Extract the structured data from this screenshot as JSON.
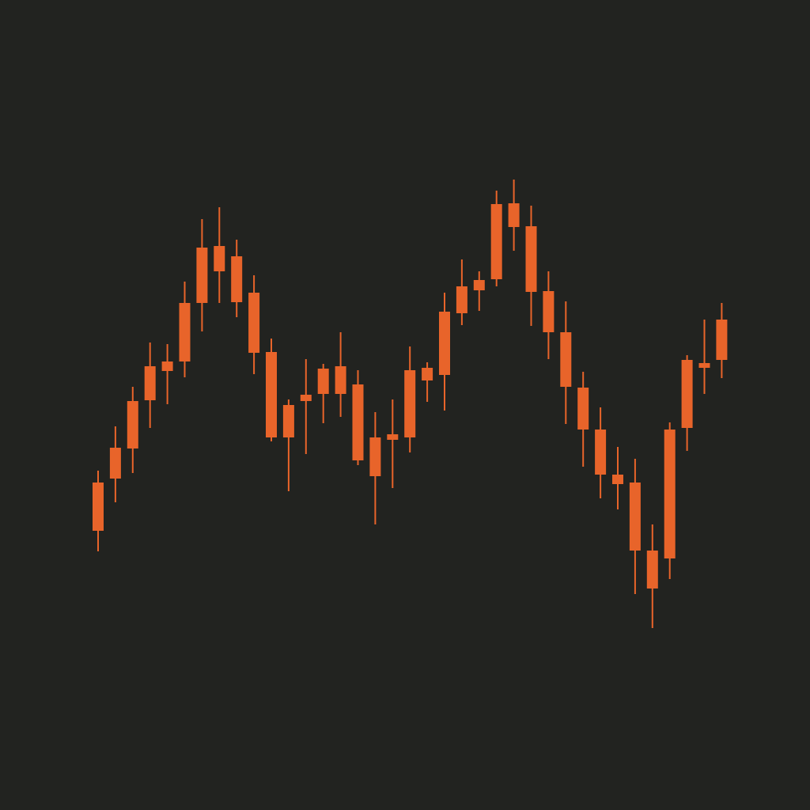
{
  "colors": {
    "background": "#222320",
    "candle": "#E8642A"
  },
  "chart_data": {
    "type": "candlestick",
    "title": "",
    "xlabel": "",
    "ylabel": "",
    "axes_visible": false,
    "grid": false,
    "legend": "none",
    "ylim": [
      0,
      1000
    ],
    "candles": [
      {
        "index": 1,
        "open": 329,
        "close": 390,
        "high": 405,
        "low": 303
      },
      {
        "index": 2,
        "open": 395,
        "close": 434,
        "high": 461,
        "low": 365
      },
      {
        "index": 3,
        "open": 433,
        "close": 493,
        "high": 511,
        "low": 402
      },
      {
        "index": 4,
        "open": 494,
        "close": 537,
        "high": 567,
        "low": 459
      },
      {
        "index": 5,
        "open": 531,
        "close": 543,
        "high": 565,
        "low": 489
      },
      {
        "index": 6,
        "open": 543,
        "close": 617,
        "high": 644,
        "low": 523
      },
      {
        "index": 7,
        "open": 617,
        "close": 687,
        "high": 723,
        "low": 581
      },
      {
        "index": 8,
        "open": 689,
        "close": 657,
        "high": 738,
        "low": 617
      },
      {
        "index": 9,
        "open": 676,
        "close": 618,
        "high": 697,
        "low": 599
      },
      {
        "index": 10,
        "open": 630,
        "close": 554,
        "high": 652,
        "low": 527
      },
      {
        "index": 11,
        "open": 555,
        "close": 447,
        "high": 572,
        "low": 442
      },
      {
        "index": 12,
        "open": 488,
        "close": 447,
        "high": 495,
        "low": 379
      },
      {
        "index": 13,
        "open": 493,
        "close": 501,
        "high": 546,
        "low": 426
      },
      {
        "index": 14,
        "open": 502,
        "close": 534,
        "high": 540,
        "low": 465
      },
      {
        "index": 15,
        "open": 502,
        "close": 537,
        "high": 580,
        "low": 473
      },
      {
        "index": 16,
        "open": 514,
        "close": 418,
        "high": 532,
        "low": 412
      },
      {
        "index": 17,
        "open": 447,
        "close": 398,
        "high": 479,
        "low": 337
      },
      {
        "index": 18,
        "open": 444,
        "close": 451,
        "high": 495,
        "low": 383
      },
      {
        "index": 19,
        "open": 447,
        "close": 532,
        "high": 562,
        "low": 428
      },
      {
        "index": 20,
        "open": 519,
        "close": 535,
        "high": 542,
        "low": 492
      },
      {
        "index": 21,
        "open": 526,
        "close": 606,
        "high": 630,
        "low": 481
      },
      {
        "index": 22,
        "open": 604,
        "close": 638,
        "high": 672,
        "low": 589
      },
      {
        "index": 23,
        "open": 633,
        "close": 646,
        "high": 657,
        "low": 607
      },
      {
        "index": 24,
        "open": 647,
        "close": 742,
        "high": 759,
        "low": 638
      },
      {
        "index": 25,
        "open": 743,
        "close": 713,
        "high": 773,
        "low": 683
      },
      {
        "index": 26,
        "open": 714,
        "close": 631,
        "high": 740,
        "low": 588
      },
      {
        "index": 27,
        "open": 632,
        "close": 580,
        "high": 657,
        "low": 546
      },
      {
        "index": 28,
        "open": 580,
        "close": 511,
        "high": 619,
        "low": 464
      },
      {
        "index": 29,
        "open": 510,
        "close": 457,
        "high": 530,
        "low": 410
      },
      {
        "index": 30,
        "open": 457,
        "close": 400,
        "high": 485,
        "low": 370
      },
      {
        "index": 31,
        "open": 400,
        "close": 388,
        "high": 435,
        "low": 356
      },
      {
        "index": 32,
        "open": 390,
        "close": 304,
        "high": 420,
        "low": 249
      },
      {
        "index": 33,
        "open": 304,
        "close": 256,
        "high": 337,
        "low": 206
      },
      {
        "index": 34,
        "open": 294,
        "close": 457,
        "high": 466,
        "low": 268
      },
      {
        "index": 35,
        "open": 459,
        "close": 545,
        "high": 551,
        "low": 430
      },
      {
        "index": 36,
        "open": 535,
        "close": 541,
        "high": 596,
        "low": 502
      },
      {
        "index": 37,
        "open": 545,
        "close": 596,
        "high": 617,
        "low": 522
      }
    ]
  }
}
